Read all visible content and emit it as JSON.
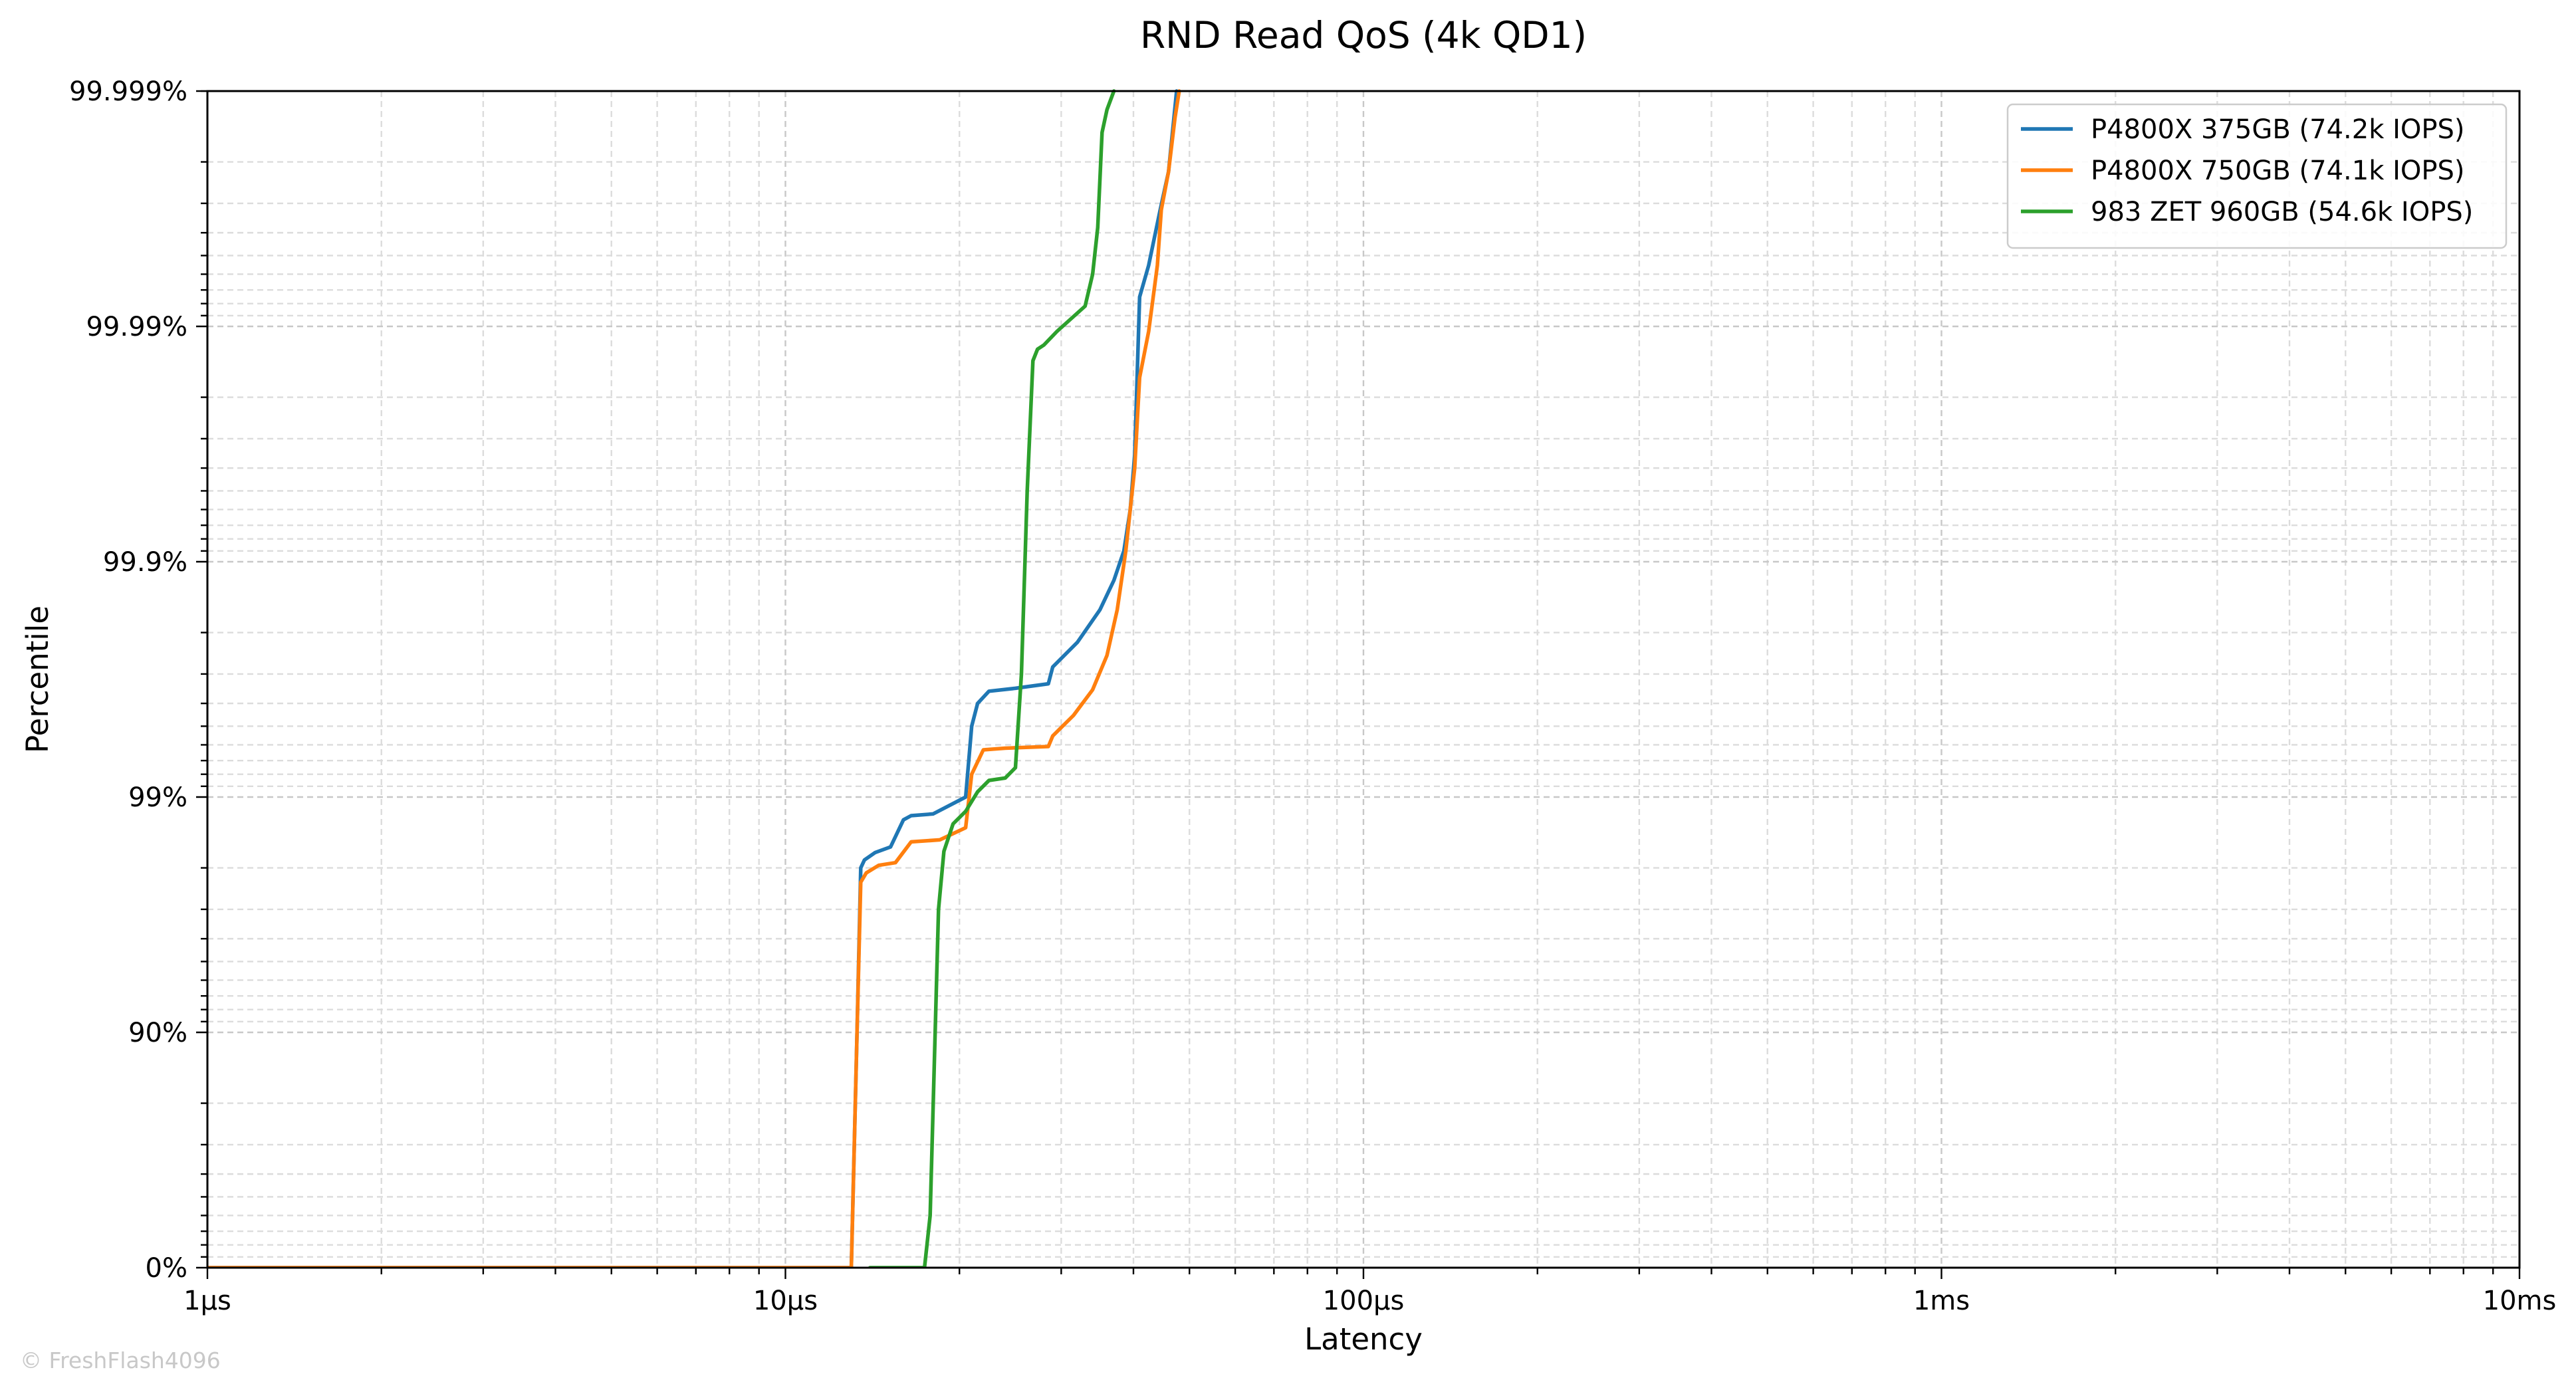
{
  "chart_data": {
    "type": "line",
    "title": "RND Read QoS (4k QD1)",
    "xlabel": "Latency",
    "ylabel": "Percentile",
    "x_scale": "log",
    "x_unit": "µs",
    "y_scale": "nines",
    "xlim": [
      1,
      10000
    ],
    "ylim_nines": [
      0,
      5
    ],
    "x_ticks": [
      {
        "value": 1,
        "label": "1µs"
      },
      {
        "value": 10,
        "label": "10µs"
      },
      {
        "value": 100,
        "label": "100µs"
      },
      {
        "value": 1000,
        "label": "1ms"
      },
      {
        "value": 10000,
        "label": "10ms"
      }
    ],
    "y_ticks": [
      {
        "value": 0,
        "label": "0%"
      },
      {
        "value": 90,
        "label": "90%"
      },
      {
        "value": 99,
        "label": "99%"
      },
      {
        "value": 99.9,
        "label": "99.9%"
      },
      {
        "value": 99.99,
        "label": "99.99%"
      },
      {
        "value": 99.999,
        "label": "99.999%"
      }
    ],
    "grid": true,
    "legend_position": "top-right",
    "series": [
      {
        "name": "P4800X 375GB (74.2k IOPS)",
        "color": "#1f77b4",
        "points": [
          {
            "x": 1,
            "y": 0
          },
          {
            "x": 13.0,
            "y": 0
          },
          {
            "x": 13.3,
            "y": 90
          },
          {
            "x": 13.5,
            "y": 98.0
          },
          {
            "x": 13.7,
            "y": 98.15
          },
          {
            "x": 14.3,
            "y": 98.28
          },
          {
            "x": 15.2,
            "y": 98.37
          },
          {
            "x": 16.0,
            "y": 98.75
          },
          {
            "x": 16.5,
            "y": 98.8
          },
          {
            "x": 18.0,
            "y": 98.82
          },
          {
            "x": 20.5,
            "y": 99.0
          },
          {
            "x": 21.0,
            "y": 99.5
          },
          {
            "x": 21.5,
            "y": 99.6
          },
          {
            "x": 22.5,
            "y": 99.645
          },
          {
            "x": 25.0,
            "y": 99.655
          },
          {
            "x": 28.5,
            "y": 99.67
          },
          {
            "x": 29.0,
            "y": 99.72
          },
          {
            "x": 32.0,
            "y": 99.78
          },
          {
            "x": 35.0,
            "y": 99.84
          },
          {
            "x": 37.0,
            "y": 99.88
          },
          {
            "x": 38.5,
            "y": 99.91
          },
          {
            "x": 39.5,
            "y": 99.94
          },
          {
            "x": 40.2,
            "y": 99.965
          },
          {
            "x": 41.0,
            "y": 99.9925
          },
          {
            "x": 42.5,
            "y": 99.9945
          },
          {
            "x": 44.5,
            "y": 99.9968
          },
          {
            "x": 46.0,
            "y": 99.9978
          },
          {
            "x": 47.0,
            "y": 99.9987
          },
          {
            "x": 47.5,
            "y": 99.999
          }
        ]
      },
      {
        "name": "P4800X 750GB (74.1k IOPS)",
        "color": "#ff7f0e",
        "points": [
          {
            "x": 1,
            "y": 0
          },
          {
            "x": 13.0,
            "y": 0
          },
          {
            "x": 13.3,
            "y": 90
          },
          {
            "x": 13.5,
            "y": 97.7
          },
          {
            "x": 13.8,
            "y": 97.9
          },
          {
            "x": 14.5,
            "y": 98.05
          },
          {
            "x": 15.5,
            "y": 98.1
          },
          {
            "x": 16.5,
            "y": 98.45
          },
          {
            "x": 18.5,
            "y": 98.48
          },
          {
            "x": 20.5,
            "y": 98.65
          },
          {
            "x": 21.0,
            "y": 99.2
          },
          {
            "x": 22.0,
            "y": 99.37
          },
          {
            "x": 24.0,
            "y": 99.38
          },
          {
            "x": 28.5,
            "y": 99.39
          },
          {
            "x": 29.0,
            "y": 99.45
          },
          {
            "x": 31.5,
            "y": 99.55
          },
          {
            "x": 34.0,
            "y": 99.65
          },
          {
            "x": 36.0,
            "y": 99.75
          },
          {
            "x": 37.5,
            "y": 99.84
          },
          {
            "x": 38.8,
            "y": 99.91
          },
          {
            "x": 40.2,
            "y": 99.96
          },
          {
            "x": 41.0,
            "y": 99.9835
          },
          {
            "x": 42.5,
            "y": 99.9895
          },
          {
            "x": 44.0,
            "y": 99.9945
          },
          {
            "x": 44.7,
            "y": 99.9968
          },
          {
            "x": 46.0,
            "y": 99.9978
          },
          {
            "x": 47.2,
            "y": 99.9987
          },
          {
            "x": 48.0,
            "y": 99.999
          }
        ]
      },
      {
        "name": "983 ZET 960GB (54.6k IOPS)",
        "color": "#2ca02c",
        "points": [
          {
            "x": 14.0,
            "y": 0
          },
          {
            "x": 17.4,
            "y": 0
          },
          {
            "x": 17.8,
            "y": 40
          },
          {
            "x": 18.4,
            "y": 97.0
          },
          {
            "x": 18.8,
            "y": 98.3
          },
          {
            "x": 19.5,
            "y": 98.7
          },
          {
            "x": 20.5,
            "y": 98.85
          },
          {
            "x": 21.5,
            "y": 99.05
          },
          {
            "x": 22.5,
            "y": 99.15
          },
          {
            "x": 24.0,
            "y": 99.17
          },
          {
            "x": 25.0,
            "y": 99.25
          },
          {
            "x": 25.6,
            "y": 99.7
          },
          {
            "x": 26.2,
            "y": 99.95
          },
          {
            "x": 26.8,
            "y": 99.986
          },
          {
            "x": 27.3,
            "y": 99.9875
          },
          {
            "x": 28.0,
            "y": 99.988
          },
          {
            "x": 29.5,
            "y": 99.9895
          },
          {
            "x": 33.0,
            "y": 99.9918
          },
          {
            "x": 34.0,
            "y": 99.994
          },
          {
            "x": 34.7,
            "y": 99.9962
          },
          {
            "x": 35.3,
            "y": 99.9985
          },
          {
            "x": 36.0,
            "y": 99.9988
          },
          {
            "x": 37.0,
            "y": 99.999
          }
        ]
      }
    ]
  },
  "credit_text": "© FreshFlash4096"
}
